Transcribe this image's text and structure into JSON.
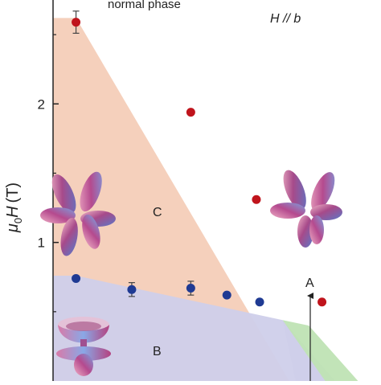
{
  "chart_data": {
    "type": "scatter",
    "title": "",
    "ylabel_prefix": "μ",
    "ylabel_sub": "0",
    "ylabel_main": "H",
    "ylabel_unit": "(T)",
    "yticks": [
      1,
      2
    ],
    "ytick_labels": [
      "1",
      "2"
    ],
    "ylim": [
      0.0,
      2.75
    ],
    "x_domain": [
      0.0,
      1.0
    ],
    "annotations": {
      "normal_phase": "normal phase",
      "field_direction": "H // b",
      "phase_a": "A",
      "phase_b": "B",
      "phase_c": "C"
    },
    "series": [
      {
        "color": "#c0141c",
        "points": [
          {
            "x": 0.07,
            "y": 2.59,
            "err": 0.08
          },
          {
            "x": 0.42,
            "y": 1.94
          },
          {
            "x": 0.62,
            "y": 1.31
          },
          {
            "x": 0.82,
            "y": 0.57
          }
        ]
      },
      {
        "color": "#1f3a93",
        "points": [
          {
            "x": 0.07,
            "y": 0.74
          },
          {
            "x": 0.24,
            "y": 0.66,
            "err": 0.05
          },
          {
            "x": 0.42,
            "y": 0.67,
            "err": 0.05
          },
          {
            "x": 0.53,
            "y": 0.62
          },
          {
            "x": 0.63,
            "y": 0.57
          }
        ]
      }
    ],
    "regions": {
      "c_region_color": "#f3c8b0",
      "b_region_color": "#cfcfea",
      "a_region_color": "#bfe3b4"
    }
  }
}
